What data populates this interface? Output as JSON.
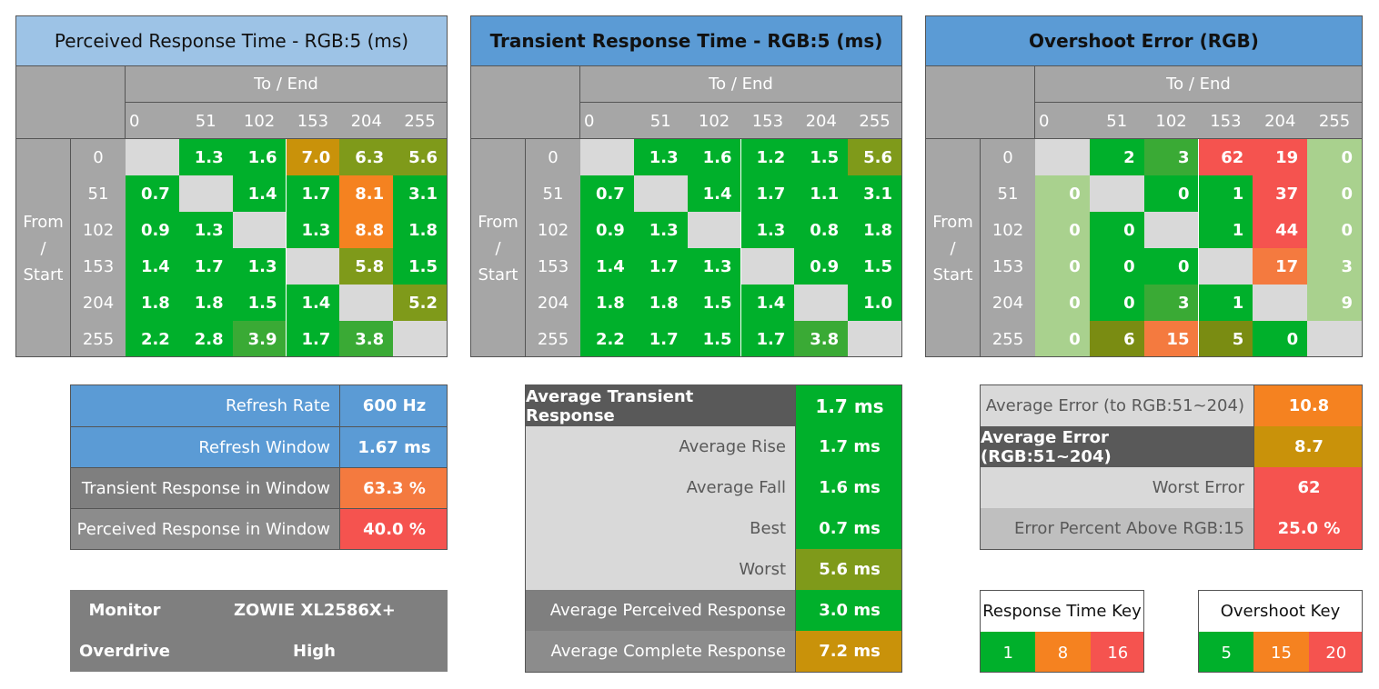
{
  "colors": {
    "green": "#00b02b",
    "mid_green": "#3aaa35",
    "light_green": "#a9d18e",
    "olive": "#7f9a1a",
    "dark_olive": "#7a8c12",
    "gold": "#c9920a",
    "orange": "#f58220",
    "red_orange": "#f47a3f",
    "red": "#f5534f",
    "gray": "#a6a6a6",
    "light_gray": "#d9d9d9",
    "dark_gray": "#595959",
    "blue": "#5b9bd5",
    "light_blue": "#9dc3e6"
  },
  "chart_data": [
    {
      "type": "heatmap",
      "title": "Perceived Response Time - RGB:5 (ms)",
      "xlabel": "To / End",
      "ylabel": "From / Start",
      "x": [
        "0",
        "51",
        "102",
        "153",
        "204",
        "255"
      ],
      "y": [
        "0",
        "51",
        "102",
        "153",
        "204",
        "255"
      ],
      "values": [
        [
          null,
          "1.3",
          "1.6",
          "7.0",
          "6.3",
          "5.6"
        ],
        [
          "0.7",
          null,
          "1.4",
          "1.7",
          "8.1",
          "3.1"
        ],
        [
          "0.9",
          "1.3",
          null,
          "1.3",
          "8.8",
          "1.8"
        ],
        [
          "1.4",
          "1.7",
          "1.3",
          null,
          "5.8",
          "1.5"
        ],
        [
          "1.8",
          "1.8",
          "1.5",
          "1.4",
          null,
          "5.2"
        ],
        [
          "2.2",
          "2.8",
          "3.9",
          "1.7",
          "3.8",
          null
        ]
      ],
      "cell_colors": [
        [
          "light_gray",
          "green",
          "green",
          "gold",
          "olive",
          "olive"
        ],
        [
          "green",
          "light_gray",
          "green",
          "green",
          "orange",
          "green"
        ],
        [
          "green",
          "green",
          "light_gray",
          "green",
          "orange",
          "green"
        ],
        [
          "green",
          "green",
          "green",
          "light_gray",
          "olive",
          "green"
        ],
        [
          "green",
          "green",
          "green",
          "green",
          "light_gray",
          "olive"
        ],
        [
          "green",
          "green",
          "mid_green",
          "green",
          "mid_green",
          "light_gray"
        ]
      ]
    },
    {
      "type": "heatmap",
      "title": "Transient Response Time - RGB:5 (ms)",
      "xlabel": "To / End",
      "ylabel": "From / Start",
      "x": [
        "0",
        "51",
        "102",
        "153",
        "204",
        "255"
      ],
      "y": [
        "0",
        "51",
        "102",
        "153",
        "204",
        "255"
      ],
      "values": [
        [
          null,
          "1.3",
          "1.6",
          "1.2",
          "1.5",
          "5.6"
        ],
        [
          "0.7",
          null,
          "1.4",
          "1.7",
          "1.1",
          "3.1"
        ],
        [
          "0.9",
          "1.3",
          null,
          "1.3",
          "0.8",
          "1.8"
        ],
        [
          "1.4",
          "1.7",
          "1.3",
          null,
          "0.9",
          "1.5"
        ],
        [
          "1.8",
          "1.8",
          "1.5",
          "1.4",
          null,
          "1.0"
        ],
        [
          "2.2",
          "1.7",
          "1.5",
          "1.7",
          "3.8",
          null
        ]
      ],
      "cell_colors": [
        [
          "light_gray",
          "green",
          "green",
          "green",
          "green",
          "olive"
        ],
        [
          "green",
          "light_gray",
          "green",
          "green",
          "green",
          "green"
        ],
        [
          "green",
          "green",
          "light_gray",
          "green",
          "green",
          "green"
        ],
        [
          "green",
          "green",
          "green",
          "light_gray",
          "green",
          "green"
        ],
        [
          "green",
          "green",
          "green",
          "green",
          "light_gray",
          "green"
        ],
        [
          "green",
          "green",
          "green",
          "green",
          "mid_green",
          "light_gray"
        ]
      ]
    },
    {
      "type": "heatmap",
      "title": "Overshoot Error (RGB)",
      "xlabel": "To / End",
      "ylabel": "From / Start",
      "x": [
        "0",
        "51",
        "102",
        "153",
        "204",
        "255"
      ],
      "y": [
        "0",
        "51",
        "102",
        "153",
        "204",
        "255"
      ],
      "values": [
        [
          null,
          "2",
          "3",
          "62",
          "19",
          "0"
        ],
        [
          "0",
          null,
          "0",
          "1",
          "37",
          "0"
        ],
        [
          "0",
          "0",
          null,
          "1",
          "44",
          "0"
        ],
        [
          "0",
          "0",
          "0",
          null,
          "17",
          "3"
        ],
        [
          "0",
          "0",
          "3",
          "1",
          null,
          "9"
        ],
        [
          "0",
          "6",
          "15",
          "5",
          "0",
          null
        ]
      ],
      "cell_colors": [
        [
          "light_gray",
          "green",
          "mid_green",
          "red",
          "red",
          "light_green"
        ],
        [
          "light_green",
          "light_gray",
          "green",
          "green",
          "red",
          "light_green"
        ],
        [
          "light_green",
          "green",
          "light_gray",
          "green",
          "red",
          "light_green"
        ],
        [
          "light_green",
          "green",
          "green",
          "light_gray",
          "red_orange",
          "light_green"
        ],
        [
          "light_green",
          "green",
          "mid_green",
          "green",
          "light_gray",
          "light_green"
        ],
        [
          "light_green",
          "dark_olive",
          "red_orange",
          "dark_olive",
          "green",
          "light_gray"
        ]
      ]
    }
  ],
  "refresh_box": {
    "rows": [
      {
        "label": "Refresh Rate",
        "value": "600 Hz",
        "label_bg": "blue",
        "value_bg": "blue"
      },
      {
        "label": "Refresh Window",
        "value": "1.67 ms",
        "label_bg": "blue",
        "value_bg": "blue"
      },
      {
        "label": "Transient Response in Window",
        "value": "63.3 %",
        "label_bg": "gray_dark",
        "value_bg": "red_orange"
      },
      {
        "label": "Perceived Response in Window",
        "value": "40.0 %",
        "label_bg": "gray_mid",
        "value_bg": "red"
      }
    ]
  },
  "monitor_box": {
    "monitor_label": "Monitor",
    "monitor_value": "ZOWIE XL2586X+",
    "overdrive_label": "Overdrive",
    "overdrive_value": "High"
  },
  "transient_summary": {
    "rows": [
      {
        "label": "Average Transient Response",
        "value": "1.7 ms",
        "style": "header",
        "value_bg": "green"
      },
      {
        "label": "Average Rise",
        "value": "1.7 ms",
        "style": "light",
        "value_bg": "green"
      },
      {
        "label": "Average Fall",
        "value": "1.6 ms",
        "style": "light",
        "value_bg": "green"
      },
      {
        "label": "Best",
        "value": "0.7 ms",
        "style": "light",
        "value_bg": "green"
      },
      {
        "label": "Worst",
        "value": "5.6 ms",
        "style": "light",
        "value_bg": "olive"
      },
      {
        "label": "Average Perceived Response",
        "value": "3.0 ms",
        "style": "mid",
        "value_bg": "green"
      },
      {
        "label": "Average Complete Response",
        "value": "7.2 ms",
        "style": "mid2",
        "value_bg": "gold"
      }
    ]
  },
  "error_summary": {
    "rows": [
      {
        "label": "Average Error (to RGB:51~204)",
        "value": "10.8",
        "style": "light",
        "value_bg": "orange"
      },
      {
        "label": "Average Error (RGB:51~204)",
        "value": "8.7",
        "style": "header",
        "value_bg": "gold"
      },
      {
        "label": "Worst Error",
        "value": "62",
        "style": "light",
        "value_bg": "red"
      },
      {
        "label": "Error Percent Above RGB:15",
        "value": "25.0 %",
        "style": "mid3",
        "value_bg": "red"
      }
    ]
  },
  "response_key": {
    "title": "Response Time Key",
    "items": [
      {
        "label": "1",
        "color": "green"
      },
      {
        "label": "8",
        "color": "orange"
      },
      {
        "label": "16",
        "color": "red"
      }
    ]
  },
  "overshoot_key": {
    "title": "Overshoot Key",
    "items": [
      {
        "label": "5",
        "color": "green"
      },
      {
        "label": "15",
        "color": "orange"
      },
      {
        "label": "20",
        "color": "red"
      }
    ]
  }
}
